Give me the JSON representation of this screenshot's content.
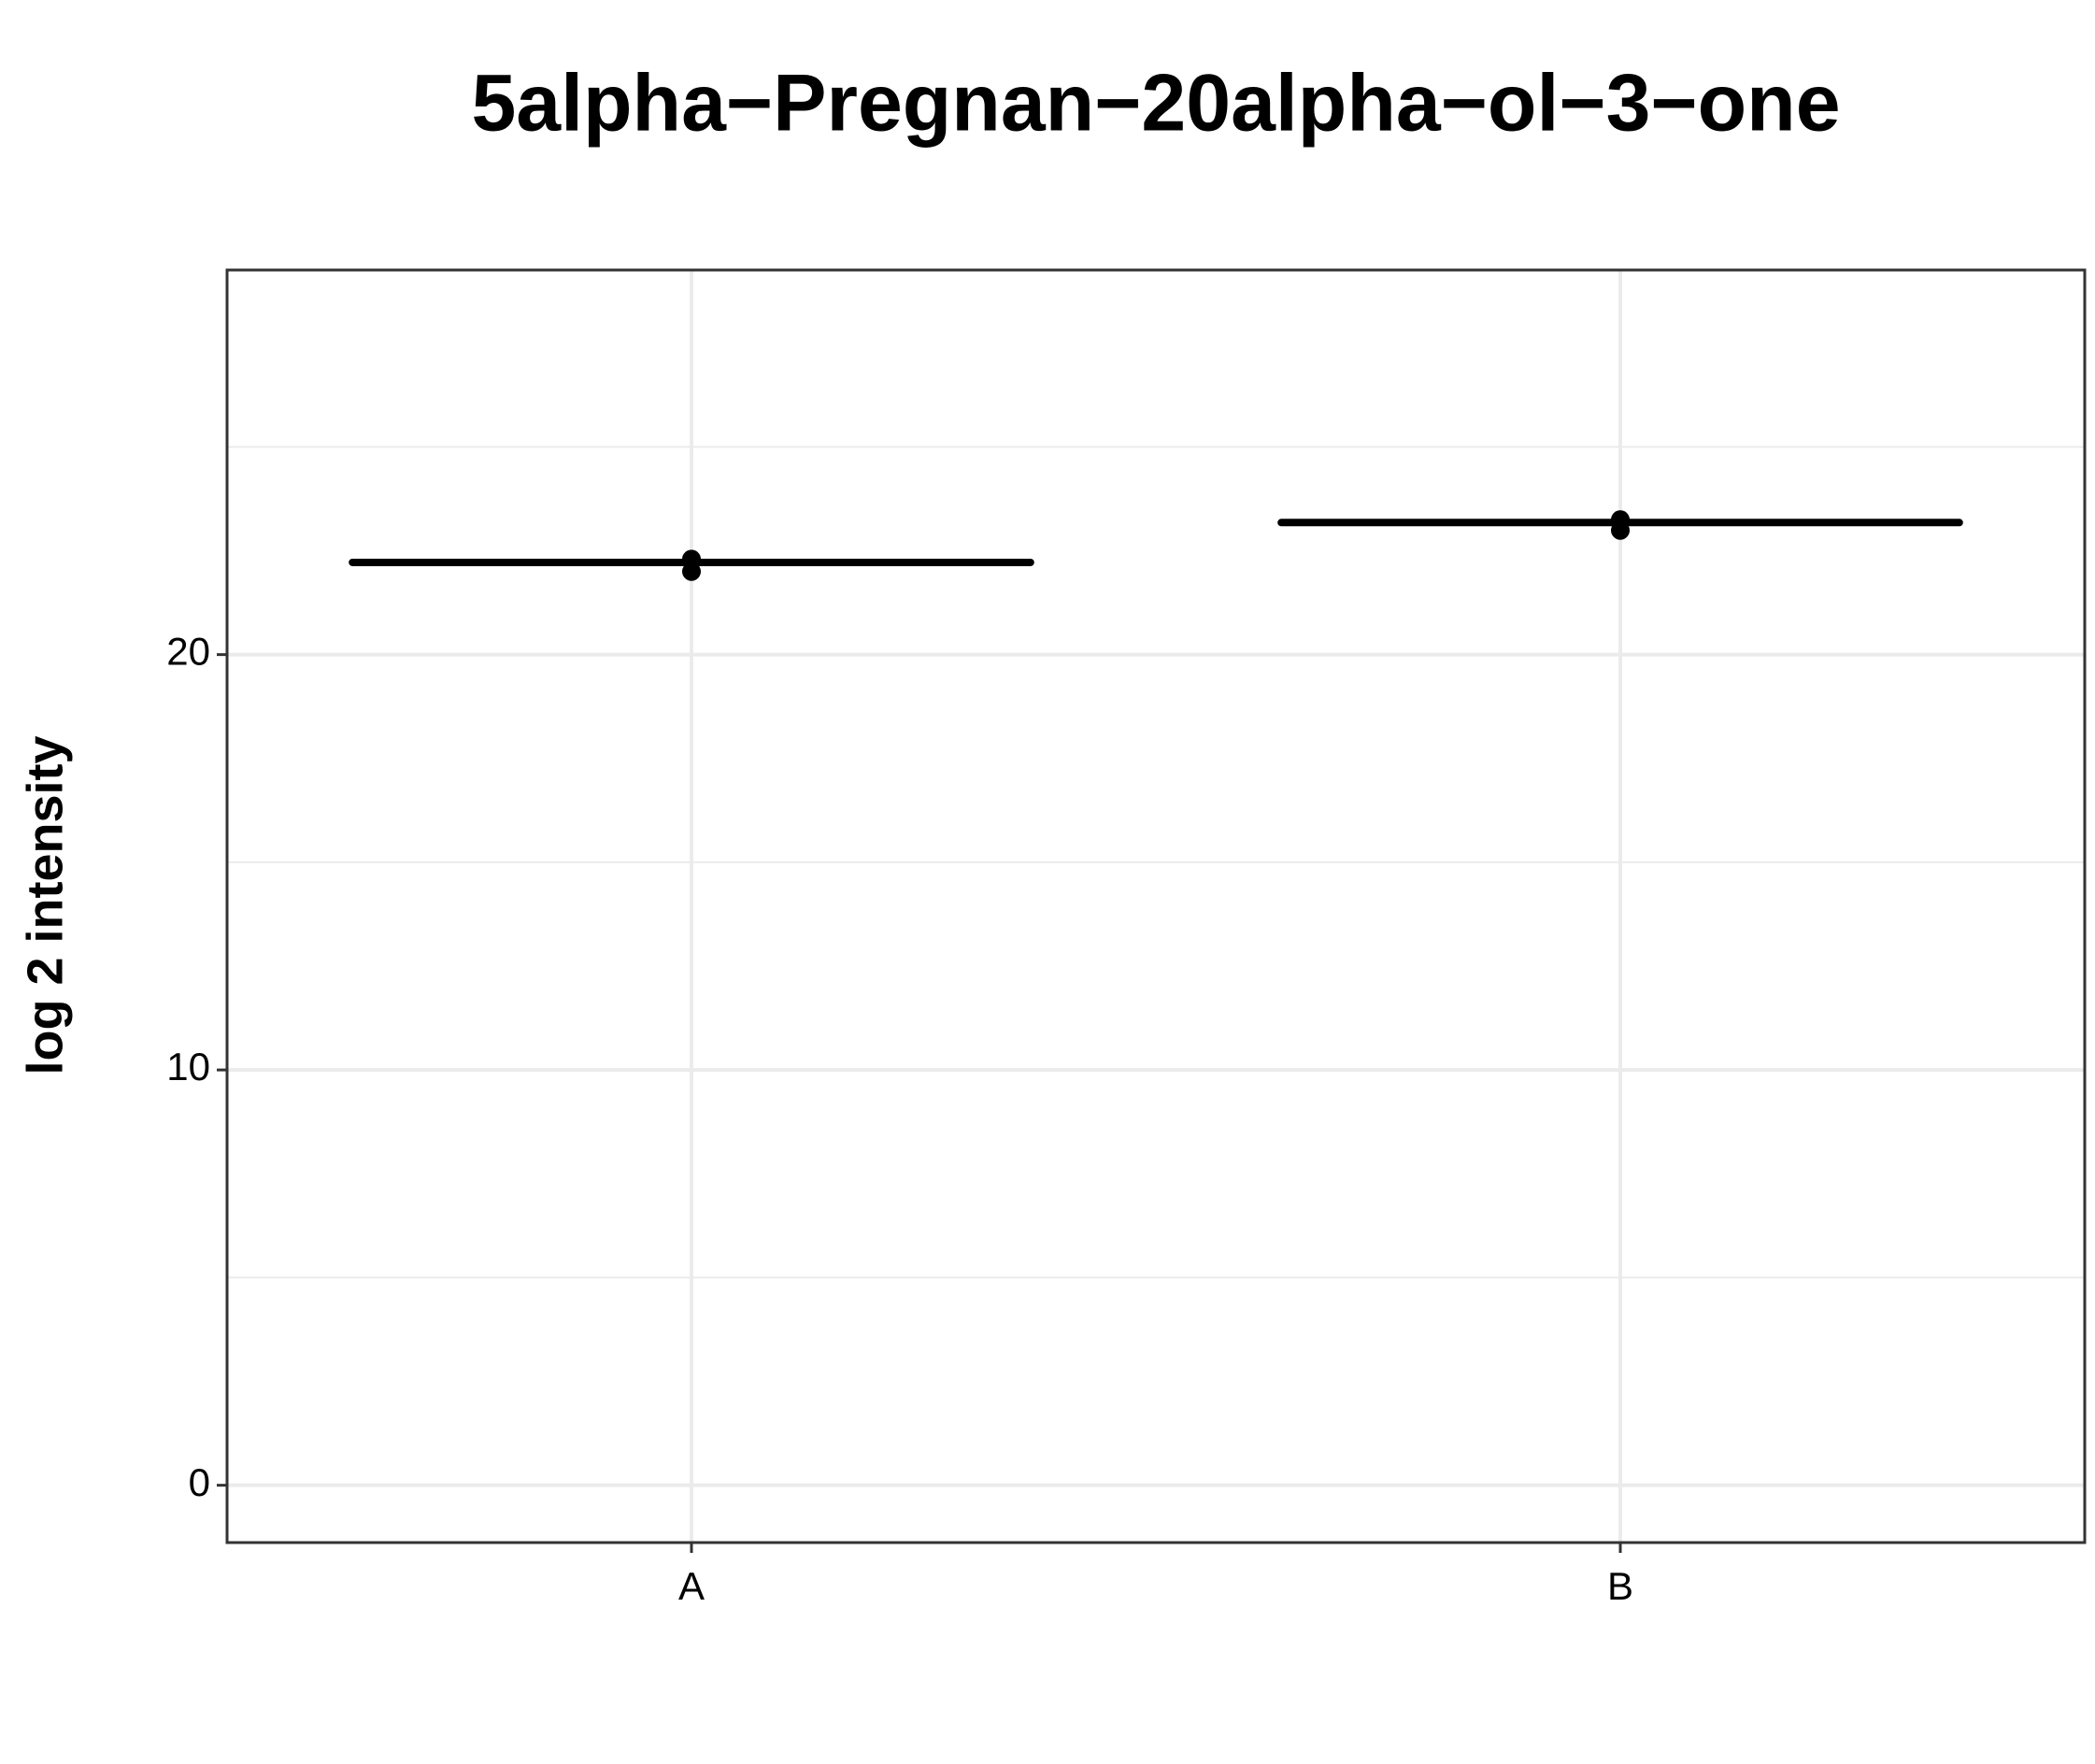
{
  "chart_data": {
    "type": "box",
    "title": "5alpha−Pregnan−20alpha−ol−3−one",
    "y_label": "log 2 intensity",
    "categories": [
      "A",
      "B"
    ],
    "medians": [
      22.22,
      23.18
    ],
    "points": [
      [
        22.3,
        22.0
      ],
      [
        23.25,
        22.99
      ]
    ],
    "color": "#000000",
    "ylim": [
      -1.38,
      29.26
    ],
    "yticks": [
      0,
      10,
      20
    ],
    "minor_yticks": [
      5,
      15,
      25
    ],
    "grid": true
  }
}
